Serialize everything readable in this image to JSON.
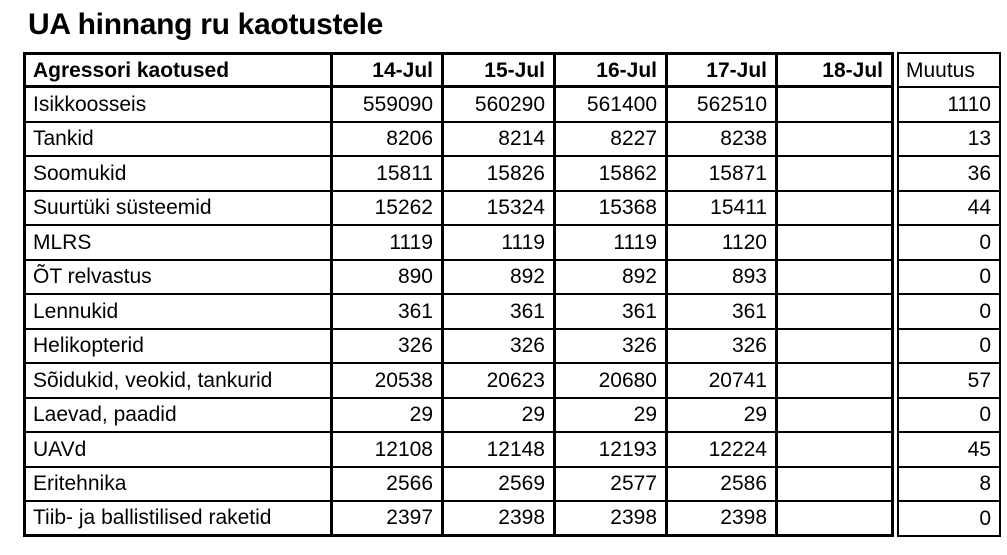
{
  "title": "UA hinnang ru kaotustele",
  "chart_data": {
    "type": "table",
    "title": "UA hinnang ru kaotustele",
    "columns": [
      "Agressori kaotused",
      "14-Jul",
      "15-Jul",
      "16-Jul",
      "17-Jul",
      "18-Jul",
      "Muutus"
    ],
    "rows": [
      [
        "Isikkoosseis",
        559090,
        560290,
        561400,
        562510,
        "",
        1110
      ],
      [
        "Tankid",
        8206,
        8214,
        8227,
        8238,
        "",
        13
      ],
      [
        "Soomukid",
        15811,
        15826,
        15862,
        15871,
        "",
        36
      ],
      [
        "Suurtüki süsteemid",
        15262,
        15324,
        15368,
        15411,
        "",
        44
      ],
      [
        "MLRS",
        1119,
        1119,
        1119,
        1120,
        "",
        0
      ],
      [
        "ÕT relvastus",
        890,
        892,
        892,
        893,
        "",
        0
      ],
      [
        "Lennukid",
        361,
        361,
        361,
        361,
        "",
        0
      ],
      [
        "Helikopterid",
        326,
        326,
        326,
        326,
        "",
        0
      ],
      [
        "Sõidukid, veokid, tankurid",
        20538,
        20623,
        20680,
        20741,
        "",
        57
      ],
      [
        "Laevad, paadid",
        29,
        29,
        29,
        29,
        "",
        0
      ],
      [
        "UAVd",
        12108,
        12148,
        12193,
        12224,
        "",
        45
      ],
      [
        "Eritehnika",
        2566,
        2569,
        2577,
        2586,
        "",
        8
      ],
      [
        "Tiib- ja ballistilised raketid",
        2397,
        2398,
        2398,
        2398,
        "",
        0
      ]
    ]
  }
}
